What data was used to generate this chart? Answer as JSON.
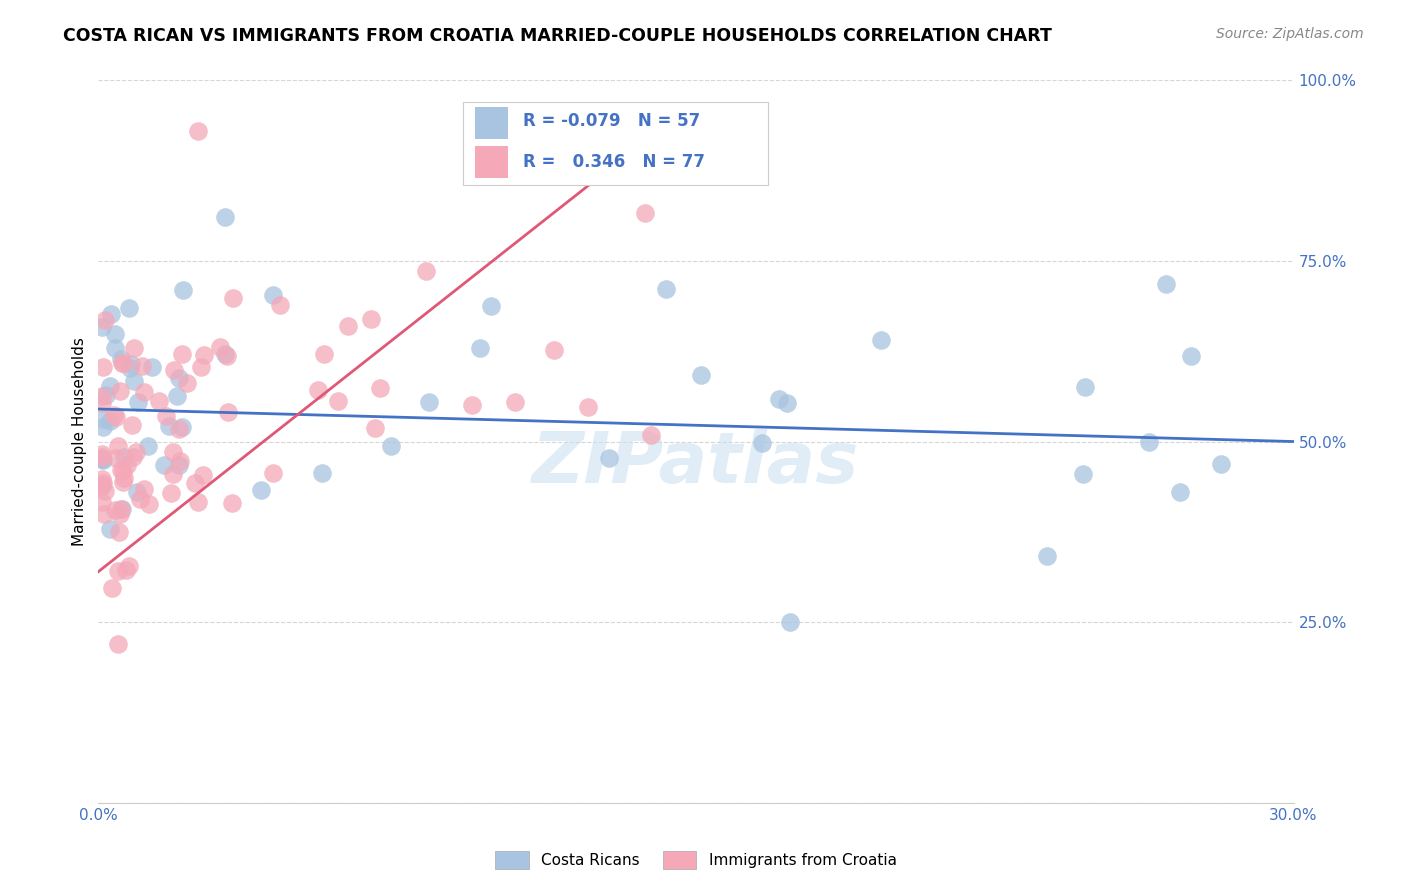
{
  "title": "COSTA RICAN VS IMMIGRANTS FROM CROATIA MARRIED-COUPLE HOUSEHOLDS CORRELATION CHART",
  "source": "Source: ZipAtlas.com",
  "ylabel": "Married-couple Households",
  "xlim": [
    0.0,
    0.3
  ],
  "ylim": [
    0.0,
    1.0
  ],
  "blue_color": "#a8c4e0",
  "pink_color": "#f4a8b8",
  "blue_line_color": "#4472c4",
  "pink_line_color": "#e05878",
  "watermark": "ZIPatlas",
  "legend_R_blue": "-0.079",
  "legend_N_blue": "57",
  "legend_R_pink": "0.346",
  "legend_N_pink": "77",
  "legend_label_blue": "Costa Ricans",
  "legend_label_pink": "Immigrants from Croatia",
  "blue_line_x0": 0.0,
  "blue_line_x1": 0.3,
  "blue_line_y0": 0.545,
  "blue_line_y1": 0.5,
  "pink_line_x0": 0.0,
  "pink_line_x1": 0.145,
  "pink_line_y0": 0.32,
  "pink_line_y1": 0.95
}
